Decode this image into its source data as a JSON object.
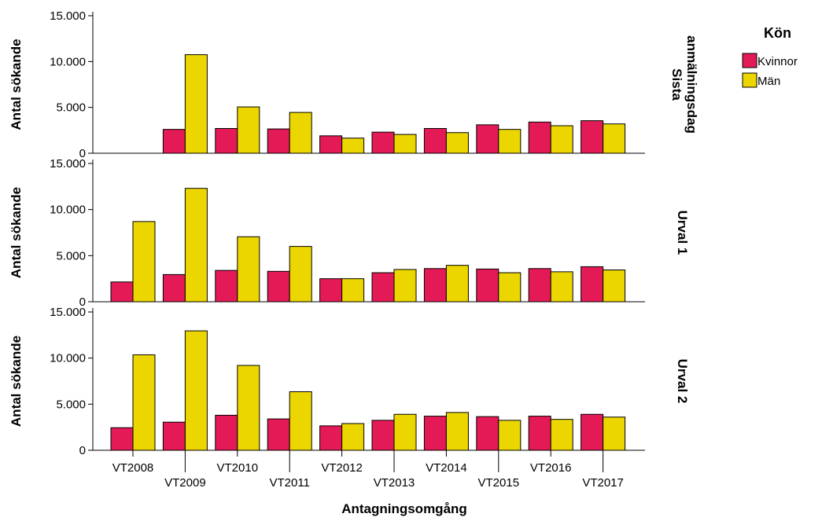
{
  "chart_data": {
    "type": "bar",
    "xlabel": "Antagningsomgång",
    "ylabel": "Antal sökande",
    "ylim": [
      0,
      15000
    ],
    "yticks": [
      0,
      5000,
      10000,
      15000
    ],
    "ytick_labels": [
      "0",
      "5.000",
      "10.000",
      "15.000"
    ],
    "categories": [
      "VT2008",
      "VT2009",
      "VT2010",
      "VT2011",
      "VT2012",
      "VT2013",
      "VT2014",
      "VT2015",
      "VT2016",
      "VT2017"
    ],
    "legend": {
      "title": "Kön",
      "position": "right",
      "entries": [
        {
          "name": "Kvinnor",
          "color": "#e31a55"
        },
        {
          "name": "Män",
          "color": "#ecd600"
        }
      ]
    },
    "facets": [
      {
        "label_lines": [
          "Sista",
          "anmälningsdag"
        ],
        "series": [
          {
            "name": "Kvinnor",
            "values": [
              null,
              2600,
              2700,
              2650,
              1900,
              2300,
              2700,
              3100,
              3400,
              3550
            ]
          },
          {
            "name": "Män",
            "values": [
              null,
              10750,
              5050,
              4450,
              1650,
              2050,
              2250,
              2600,
              3000,
              3200
            ]
          }
        ]
      },
      {
        "label_lines": [
          "Urval 1"
        ],
        "series": [
          {
            "name": "Kvinnor",
            "values": [
              2150,
              2950,
              3400,
              3300,
              2500,
              3150,
              3600,
              3550,
              3600,
              3800
            ]
          },
          {
            "name": "Män",
            "values": [
              8700,
              12300,
              7050,
              6000,
              2500,
              3500,
              3950,
              3150,
              3250,
              3450
            ]
          }
        ]
      },
      {
        "label_lines": [
          "Urval 2"
        ],
        "series": [
          {
            "name": "Kvinnor",
            "values": [
              2450,
              3050,
              3800,
              3400,
              2650,
              3250,
              3700,
              3650,
              3700,
              3900
            ]
          },
          {
            "name": "Män",
            "values": [
              10350,
              12950,
              9200,
              6350,
              2900,
              3900,
              4100,
              3250,
              3350,
              3600
            ]
          }
        ]
      }
    ]
  }
}
